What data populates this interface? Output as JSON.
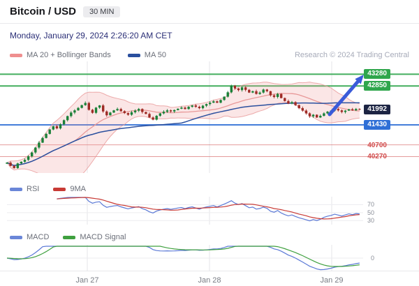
{
  "header": {
    "title": "Bitcoin / USD",
    "timeframe": "30 MIN",
    "datetime": "Monday, January 29, 2024 2:26:20 AM CET"
  },
  "watermark": "Research © 2024 Trading Central",
  "legend": {
    "ma20": "MA 20 + Bollinger Bands",
    "ma50": "MA 50"
  },
  "panels": {
    "rsi": {
      "label": "RSI",
      "ma_label": "9MA",
      "gridlines": [
        70,
        50,
        30
      ]
    },
    "macd": {
      "label": "MACD",
      "signal_label": "MACD Signal",
      "zero_label": "0"
    }
  },
  "colors": {
    "up_candle": "#1a8038",
    "down_candle": "#9e2b25",
    "ma20": "#e89898",
    "bollinger_fill": "rgba(239,154,154,0.25)",
    "ma50": "#2a4f9e",
    "rsi": "#5b79d6",
    "rsi_ma": "#c83a35",
    "macd": "#5b79d6",
    "macd_signal": "#3fa03f",
    "arrow": "#3a5bd9",
    "grid": "#e6e6ea"
  },
  "chart_data": {
    "type": "candlestick",
    "title": "Bitcoin / USD 30 MIN",
    "x_labels": [
      "Jan 27",
      "Jan 28",
      "Jan 29"
    ],
    "levels": [
      {
        "value": 43280,
        "color": "#2fa64c",
        "style": "badge",
        "line": true,
        "lw": 2
      },
      {
        "value": 42850,
        "color": "#2fa64c",
        "style": "badge",
        "line": true,
        "lw": 2
      },
      {
        "value": 41992,
        "color": "#1c2443",
        "style": "badge",
        "line": false,
        "lw": 0
      },
      {
        "value": 41430,
        "color": "#2f6fd6",
        "style": "badge",
        "line": true,
        "lw": 2
      },
      {
        "value": 40700,
        "color": "#d14b4b",
        "style": "text",
        "line": true,
        "lw": 1
      },
      {
        "value": 40270,
        "color": "#d14b4b",
        "style": "text",
        "line": true,
        "lw": 1
      }
    ],
    "closes": [
      40050,
      39930,
      39850,
      40020,
      40080,
      40150,
      40280,
      40420,
      40600,
      40780,
      40950,
      41100,
      41260,
      41380,
      41300,
      41450,
      41600,
      41750,
      41880,
      41960,
      42050,
      42150,
      42230,
      41980,
      41870,
      42060,
      42140,
      41920,
      41780,
      41880,
      41960,
      42010,
      41930,
      41860,
      41800,
      41890,
      41950,
      42010,
      41900,
      41830,
      41700,
      41620,
      41760,
      41850,
      41910,
      41960,
      41920,
      41970,
      42020,
      42060,
      42010,
      42090,
      42140,
      42090,
      42040,
      42130,
      42190,
      42240,
      42290,
      42240,
      42340,
      42460,
      42620,
      42860,
      42760,
      42700,
      42800,
      42710,
      42610,
      42660,
      42560,
      42610,
      42720,
      42660,
      42510,
      42450,
      42560,
      42410,
      42300,
      42210,
      42260,
      42150,
      42040,
      41950,
      41850,
      41740,
      41800,
      41700,
      41760,
      41850,
      41910,
      41950,
      42010,
      41960,
      41900,
      41950,
      42000,
      41960,
      42010,
      41992
    ],
    "indicators": [
      "MA 20 + Bollinger Bands",
      "MA 50",
      "RSI",
      "9MA",
      "MACD",
      "MACD Signal"
    ]
  }
}
